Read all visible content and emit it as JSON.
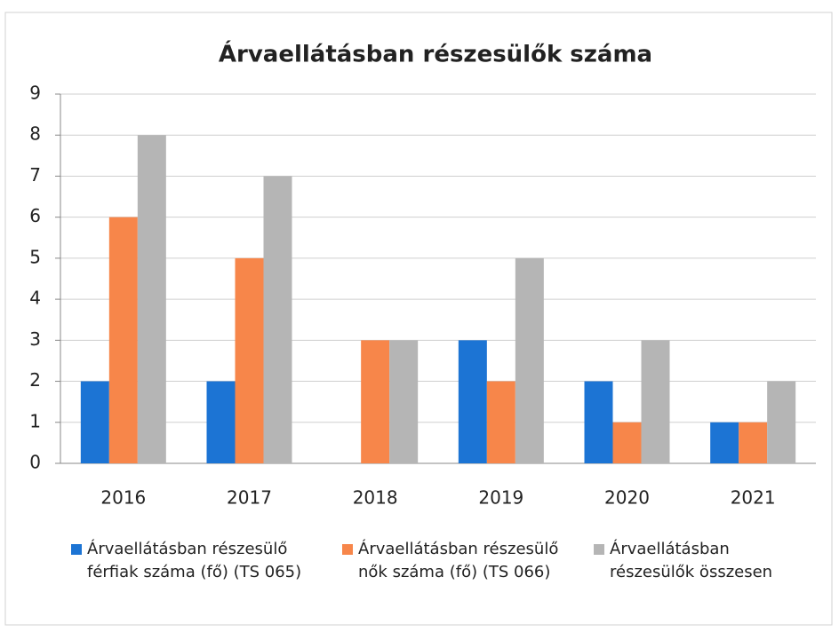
{
  "chart_data": {
    "type": "bar",
    "title": "Árvaellátásban részesülők száma",
    "categories": [
      "2016",
      "2017",
      "2018",
      "2019",
      "2020",
      "2021"
    ],
    "series": [
      {
        "name": "Árvaellátásban részesülő férfiak száma (fő) (TS 065)",
        "color": "#1c74d4",
        "values": [
          2,
          2,
          0,
          3,
          2,
          1
        ]
      },
      {
        "name": "Árvaellátásban részesülő nők száma (fő) (TS 066)",
        "color": "#f7864a",
        "values": [
          6,
          5,
          3,
          2,
          1,
          1
        ]
      },
      {
        "name": "Árvaellátásban részesülők összesen",
        "color": "#b5b5b5",
        "values": [
          8,
          7,
          3,
          5,
          3,
          2
        ]
      }
    ],
    "ylim": [
      0,
      9
    ],
    "yticks": [
      0,
      1,
      2,
      3,
      4,
      5,
      6,
      7,
      8,
      9
    ],
    "grid": true,
    "legend": "bottom"
  }
}
